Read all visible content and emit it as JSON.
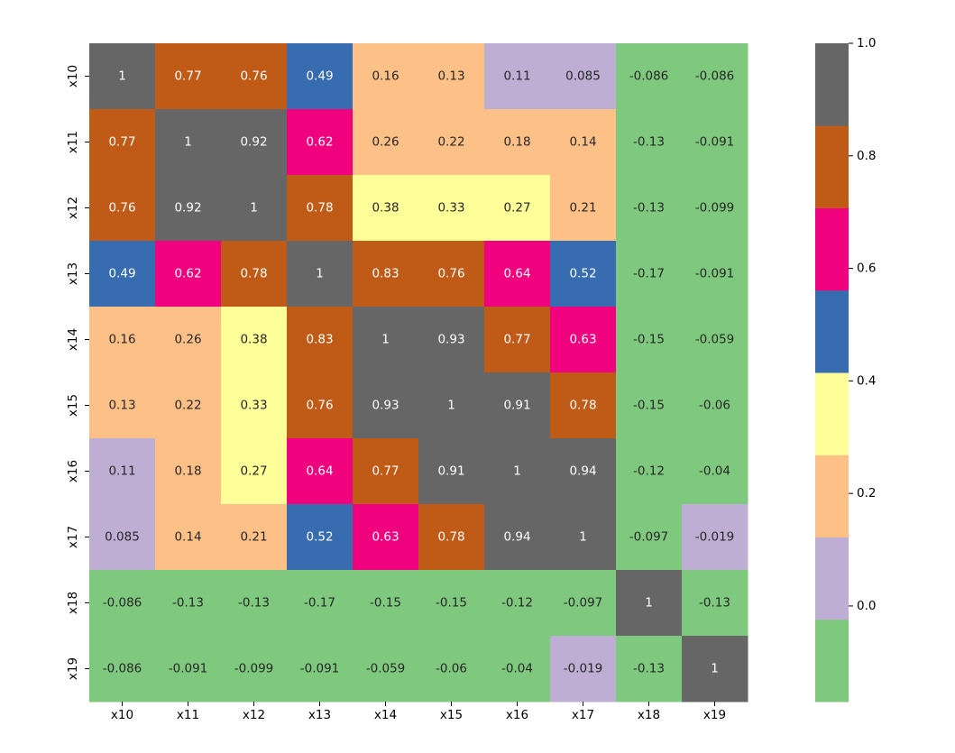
{
  "chart_data": {
    "type": "heatmap",
    "title": "",
    "xlabel": "",
    "ylabel": "",
    "x_labels": [
      "x10",
      "x11",
      "x12",
      "x13",
      "x14",
      "x15",
      "x16",
      "x17",
      "x18",
      "x19"
    ],
    "y_labels": [
      "x10",
      "x11",
      "x12",
      "x13",
      "x14",
      "x15",
      "x16",
      "x17",
      "x18",
      "x19"
    ],
    "values": [
      [
        1,
        0.77,
        0.76,
        0.49,
        0.16,
        0.13,
        0.11,
        0.085,
        -0.086,
        -0.086
      ],
      [
        0.77,
        1,
        0.92,
        0.62,
        0.26,
        0.22,
        0.18,
        0.14,
        -0.13,
        -0.091
      ],
      [
        0.76,
        0.92,
        1,
        0.78,
        0.38,
        0.33,
        0.27,
        0.21,
        -0.13,
        -0.099
      ],
      [
        0.49,
        0.62,
        0.78,
        1,
        0.83,
        0.76,
        0.64,
        0.52,
        -0.17,
        -0.091
      ],
      [
        0.16,
        0.26,
        0.38,
        0.83,
        1,
        0.93,
        0.77,
        0.63,
        -0.15,
        -0.059
      ],
      [
        0.13,
        0.22,
        0.33,
        0.76,
        0.93,
        1,
        0.91,
        0.78,
        -0.15,
        -0.06
      ],
      [
        0.11,
        0.18,
        0.27,
        0.64,
        0.77,
        0.91,
        1,
        0.94,
        -0.12,
        -0.04
      ],
      [
        0.085,
        0.14,
        0.21,
        0.52,
        0.63,
        0.78,
        0.94,
        1,
        -0.097,
        -0.019
      ],
      [
        -0.086,
        -0.13,
        -0.13,
        -0.17,
        -0.15,
        -0.15,
        -0.12,
        -0.097,
        1,
        -0.13
      ],
      [
        -0.086,
        -0.091,
        -0.099,
        -0.091,
        -0.059,
        -0.06,
        -0.04,
        -0.019,
        -0.13,
        1
      ]
    ],
    "value_labels": [
      [
        "1",
        "0.77",
        "0.76",
        "0.49",
        "0.16",
        "0.13",
        "0.11",
        "0.085",
        "-0.086",
        "-0.086"
      ],
      [
        "0.77",
        "1",
        "0.92",
        "0.62",
        "0.26",
        "0.22",
        "0.18",
        "0.14",
        "-0.13",
        "-0.091"
      ],
      [
        "0.76",
        "0.92",
        "1",
        "0.78",
        "0.38",
        "0.33",
        "0.27",
        "0.21",
        "-0.13",
        "-0.099"
      ],
      [
        "0.49",
        "0.62",
        "0.78",
        "1",
        "0.83",
        "0.76",
        "0.64",
        "0.52",
        "-0.17",
        "-0.091"
      ],
      [
        "0.16",
        "0.26",
        "0.38",
        "0.83",
        "1",
        "0.93",
        "0.77",
        "0.63",
        "-0.15",
        "-0.059"
      ],
      [
        "0.13",
        "0.22",
        "0.33",
        "0.76",
        "0.93",
        "1",
        "0.91",
        "0.78",
        "-0.15",
        "-0.06"
      ],
      [
        "0.11",
        "0.18",
        "0.27",
        "0.64",
        "0.77",
        "0.91",
        "1",
        "0.94",
        "-0.12",
        "-0.04"
      ],
      [
        "0.085",
        "0.14",
        "0.21",
        "0.52",
        "0.63",
        "0.78",
        "0.94",
        "1",
        "-0.097",
        "-0.019"
      ],
      [
        "-0.086",
        "-0.13",
        "-0.13",
        "-0.17",
        "-0.15",
        "-0.15",
        "-0.12",
        "-0.097",
        "1",
        "-0.13"
      ],
      [
        "-0.086",
        "-0.091",
        "-0.099",
        "-0.091",
        "-0.059",
        "-0.06",
        "-0.04",
        "-0.019",
        "-0.13",
        "1"
      ]
    ],
    "colorbar": {
      "range": [
        -0.17,
        1.0
      ],
      "ticks": [
        0.0,
        0.2,
        0.4,
        0.6,
        0.8,
        1.0
      ],
      "tick_labels": [
        "0.0",
        "0.2",
        "0.4",
        "0.6",
        "0.8",
        "1.0"
      ],
      "colors": [
        "#7fc97f",
        "#beaed4",
        "#fdc086",
        "#ffff99",
        "#386cb0",
        "#f0027f",
        "#bf5b17",
        "#666666"
      ],
      "colormap": "Accent"
    },
    "annotation_text_colors": {
      "dark": "#262626",
      "light": "#ffffff"
    },
    "grid": false,
    "legend": "colorbar-right"
  }
}
